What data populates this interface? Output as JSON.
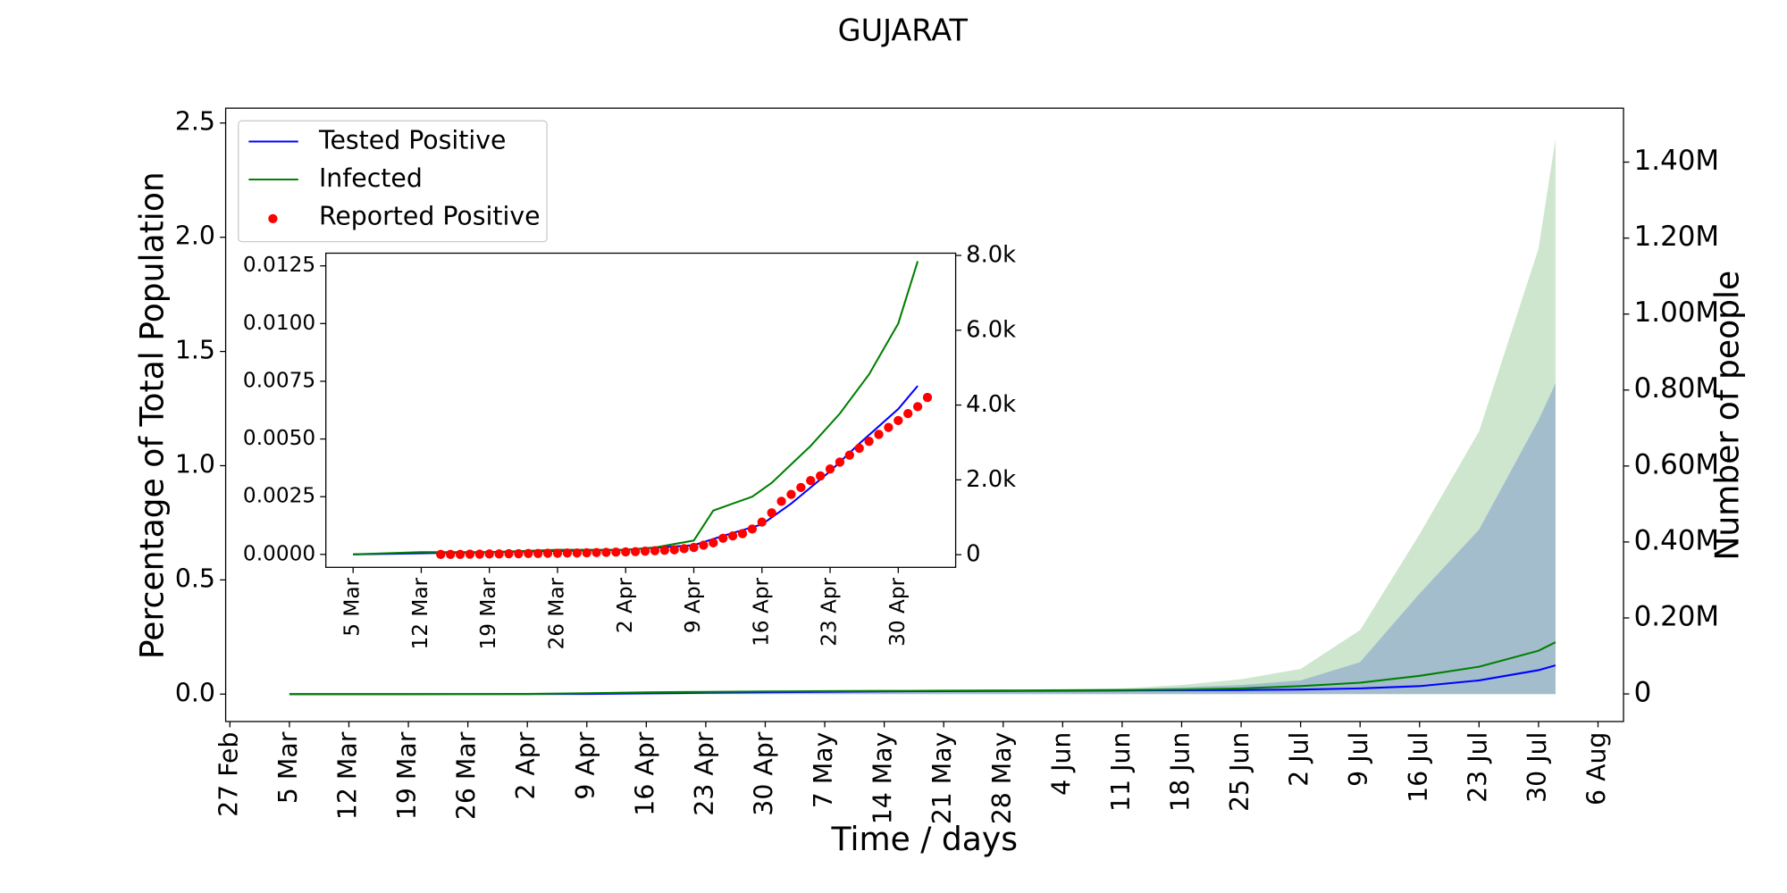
{
  "chart_data": [
    {
      "type": "line",
      "title": "GUJARAT",
      "xlabel": "Time / days",
      "ylabel": "Percentage of Total Population",
      "y2label": "Number of people",
      "legend": "upper left",
      "x": [
        7,
        14,
        21,
        28,
        35,
        42,
        49,
        56,
        63,
        70,
        77,
        84,
        91,
        98,
        105,
        112,
        119,
        126,
        133,
        140,
        147,
        154,
        156
      ],
      "xlim": [
        -0.5,
        164
      ],
      "xticks": [
        {
          "value": 0,
          "label": "27 Feb"
        },
        {
          "value": 7,
          "label": "5 Mar"
        },
        {
          "value": 14,
          "label": "12 Mar"
        },
        {
          "value": 21,
          "label": "19 Mar"
        },
        {
          "value": 28,
          "label": "26 Mar"
        },
        {
          "value": 35,
          "label": "2 Apr"
        },
        {
          "value": 42,
          "label": "9 Apr"
        },
        {
          "value": 49,
          "label": "16 Apr"
        },
        {
          "value": 56,
          "label": "23 Apr"
        },
        {
          "value": 63,
          "label": "30 Apr"
        },
        {
          "value": 70,
          "label": "7 May"
        },
        {
          "value": 77,
          "label": "14 May"
        },
        {
          "value": 84,
          "label": "21 May"
        },
        {
          "value": 91,
          "label": "28 May"
        },
        {
          "value": 98,
          "label": "4 Jun"
        },
        {
          "value": 105,
          "label": "11 Jun"
        },
        {
          "value": 112,
          "label": "18 Jun"
        },
        {
          "value": 119,
          "label": "25 Jun"
        },
        {
          "value": 126,
          "label": "2 Jul"
        },
        {
          "value": 133,
          "label": "9 Jul"
        },
        {
          "value": 140,
          "label": "16 Jul"
        },
        {
          "value": 147,
          "label": "23 Jul"
        },
        {
          "value": 154,
          "label": "30 Jul"
        },
        {
          "value": 161,
          "label": "6 Aug"
        }
      ],
      "ylim": [
        -0.12,
        2.565
      ],
      "yticks": [
        {
          "value": 0,
          "label": "0.0"
        },
        0.5,
        {
          "value": 1,
          "label": "1.0"
        },
        1.5,
        {
          "value": 2,
          "label": "2.0"
        },
        2.5
      ],
      "y2lim": [
        -72700,
        1542000
      ],
      "y2ticks": [
        0,
        {
          "value": 200000,
          "label": "0.20M"
        },
        {
          "value": 400000,
          "label": "0.40M"
        },
        {
          "value": 600000,
          "label": "0.60M"
        },
        {
          "value": 800000,
          "label": "0.80M"
        },
        {
          "value": 1000000,
          "label": "1.00M"
        },
        {
          "value": 1200000,
          "label": "1.20M"
        },
        {
          "value": 1400000,
          "label": "1.40M"
        }
      ],
      "areas": [
        {
          "color": "#cde6cd",
          "values": [
            0,
            0,
            0,
            0.0003,
            0.0015,
            0.005,
            0.009,
            0.011,
            0.013,
            0.014,
            0.015,
            0.016,
            0.018,
            0.02,
            0.025,
            0.04,
            0.065,
            0.11,
            0.28,
            0.7,
            1.15,
            1.95,
            2.43
          ]
        },
        {
          "color": "#a3bdcd",
          "values": [
            0,
            0,
            0,
            0.0001,
            0.0006,
            0.0012,
            0.0035,
            0.007,
            0.009,
            0.011,
            0.013,
            0.014,
            0.015,
            0.017,
            0.02,
            0.03,
            0.04,
            0.06,
            0.14,
            0.44,
            0.72,
            1.2,
            1.36
          ]
        }
      ],
      "series": [
        {
          "color": "#0000ff",
          "values": [
            0,
            0,
            0,
            0.0001,
            0.0005,
            0.001,
            0.003,
            0.006,
            0.008,
            0.01,
            0.012,
            0.013,
            0.014,
            0.015,
            0.016,
            0.017,
            0.018,
            0.02,
            0.025,
            0.035,
            0.06,
            0.105,
            0.126
          ]
        },
        {
          "color": "#008000",
          "values": [
            0,
            0,
            0,
            0.0002,
            0.001,
            0.004,
            0.008,
            0.01,
            0.012,
            0.013,
            0.014,
            0.015,
            0.016,
            0.017,
            0.018,
            0.02,
            0.025,
            0.035,
            0.05,
            0.08,
            0.12,
            0.19,
            0.227
          ]
        }
      ]
    },
    {
      "type": "line",
      "xlim": [
        4.2,
        68.9
      ],
      "xticks": [
        {
          "value": 7,
          "label": "5 Mar"
        },
        {
          "value": 14,
          "label": "12 Mar"
        },
        {
          "value": 21,
          "label": "19 Mar"
        },
        {
          "value": 28,
          "label": "26 Mar"
        },
        {
          "value": 35,
          "label": "2 Apr"
        },
        {
          "value": 42,
          "label": "9 Apr"
        },
        {
          "value": 49,
          "label": "16 Apr"
        },
        {
          "value": 56,
          "label": "23 Apr"
        },
        {
          "value": 63,
          "label": "30 Apr"
        }
      ],
      "ylim": [
        -0.00056,
        0.01305
      ],
      "yticks": [
        {
          "value": 0,
          "label": "0.0000"
        },
        {
          "value": 0.0025,
          "label": "0.0025"
        },
        {
          "value": 0.005,
          "label": "0.0050"
        },
        {
          "value": 0.0075,
          "label": "0.0075"
        },
        {
          "value": 0.01,
          "label": "0.0100"
        },
        {
          "value": 0.0125,
          "label": "0.0125"
        }
      ],
      "y2lim": [
        -338,
        8060
      ],
      "y2ticks": [
        0,
        {
          "value": 2000,
          "label": "2.0k"
        },
        {
          "value": 4000,
          "label": "4.0k"
        },
        {
          "value": 6000,
          "label": "6.0k"
        },
        {
          "value": 8000,
          "label": "8.0k"
        }
      ],
      "series": [
        {
          "name": "Tested Positive",
          "kind": "line",
          "color": "#0000ff",
          "x": [
            7,
            14,
            21,
            28,
            35,
            42,
            45,
            49,
            52,
            56,
            59,
            63,
            65
          ],
          "values": [
            0,
            5e-05,
            0.0001,
            0.00015,
            0.0002,
            0.0004,
            0.0008,
            0.0013,
            0.0022,
            0.0036,
            0.0048,
            0.0063,
            0.0073
          ]
        },
        {
          "name": "Infected",
          "kind": "line",
          "color": "#008000",
          "x": [
            7,
            14,
            21,
            28,
            35,
            38,
            42,
            44,
            46,
            48,
            50,
            52,
            54,
            57,
            60,
            63,
            65
          ],
          "values": [
            0,
            0.0001,
            0.0001,
            0.0002,
            0.0002,
            0.0003,
            0.0006,
            0.0019,
            0.0022,
            0.0025,
            0.0031,
            0.0039,
            0.0047,
            0.0061,
            0.0078,
            0.01,
            0.0127
          ]
        },
        {
          "name": "Reported Positive",
          "kind": "scatter",
          "color": "#ff0000",
          "x": [
            16,
            17,
            18,
            19,
            20,
            21,
            22,
            23,
            24,
            25,
            26,
            27,
            28,
            29,
            30,
            31,
            32,
            33,
            34,
            35,
            36,
            37,
            38,
            39,
            40,
            41,
            42,
            43,
            44,
            45,
            46,
            47,
            48,
            49,
            50,
            51,
            52,
            53,
            54,
            55,
            56,
            57,
            58,
            59,
            60,
            61,
            62,
            63,
            64,
            65,
            66
          ],
          "values": [
            0,
            0,
            0,
            1e-05,
            1e-05,
            2e-05,
            2e-05,
            3e-05,
            3e-05,
            4e-05,
            4e-05,
            5e-05,
            5e-05,
            6e-05,
            6e-05,
            7e-05,
            8e-05,
            9e-05,
            0.0001,
            0.00011,
            0.00012,
            0.00014,
            0.00016,
            0.00018,
            0.0002,
            0.00025,
            0.0003,
            0.0004,
            0.0005,
            0.0007,
            0.0008,
            0.0009,
            0.0011,
            0.0014,
            0.0018,
            0.0023,
            0.0026,
            0.0029,
            0.0032,
            0.0034,
            0.0037,
            0.004,
            0.0043,
            0.0046,
            0.0049,
            0.0052,
            0.0055,
            0.0058,
            0.0061,
            0.0064,
            0.0068
          ]
        }
      ]
    }
  ]
}
